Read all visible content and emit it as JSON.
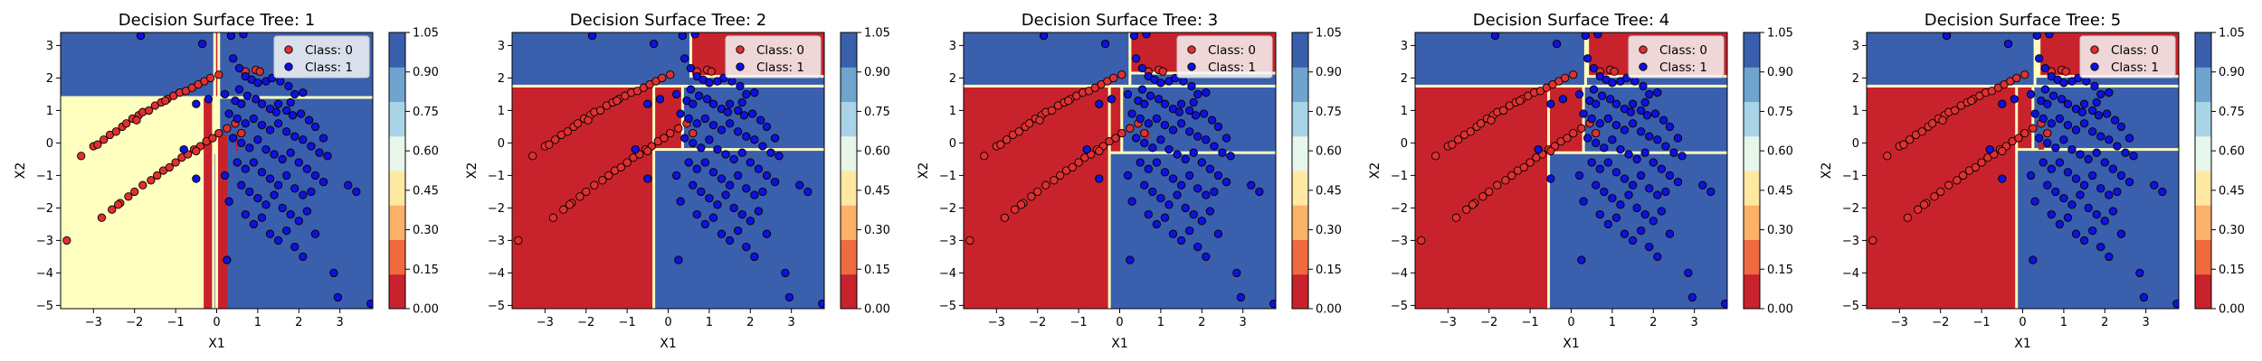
{
  "colors": {
    "class0": "#c8232c",
    "class1": "#3a5fad",
    "boundary": "#ffffbf",
    "colorbar": [
      "#c8232c",
      "#ef6a3f",
      "#fcb168",
      "#fee8a2",
      "#e7f6ea",
      "#a9d4e7",
      "#6ea4cd",
      "#3a5fad"
    ],
    "point0": "#e03030",
    "point1": "#1010e0"
  },
  "colorbar_ticks": [
    "0.00",
    "0.15",
    "0.30",
    "0.45",
    "0.60",
    "0.75",
    "0.90",
    "1.05"
  ],
  "legend": {
    "class0": "Class: 0",
    "class1": "Class: 1"
  },
  "chart_data": [
    {
      "type": "scatter",
      "title": "Decision Surface Tree: 1",
      "xlabel": "X1",
      "ylabel": "X2",
      "xlim": [
        -3.8,
        3.8
      ],
      "ylim": [
        -5.1,
        3.4
      ],
      "xticks": [
        "-3",
        "-2",
        "-1",
        "0",
        "1",
        "2",
        "3"
      ],
      "yticks": [
        "-5",
        "-4",
        "-3",
        "-2",
        "-1",
        "0",
        "1",
        "2",
        "3"
      ],
      "regions_class1": [
        [
          -3.8,
          1.4,
          -0.05,
          3.4
        ],
        [
          0.05,
          1.4,
          3.8,
          3.4
        ],
        [
          0.05,
          -5.1,
          3.8,
          1.4
        ],
        [
          -0.08,
          -5.1,
          0.0,
          -0.3
        ],
        [
          0.3,
          -5.1,
          0.42,
          0.3
        ]
      ],
      "regions_class0": [
        [
          -0.05,
          1.4,
          0.05,
          3.4
        ],
        [
          -0.35,
          -5.1,
          -0.08,
          1.4
        ],
        [
          0.0,
          -5.1,
          0.3,
          0.3
        ],
        [
          0.42,
          -0.3,
          0.55,
          0.35
        ]
      ],
      "legend_position": "top-right"
    },
    {
      "type": "scatter",
      "title": "Decision Surface Tree: 2",
      "xlabel": "X1",
      "ylabel": "X2",
      "xlim": [
        -3.8,
        3.8
      ],
      "ylim": [
        -5.1,
        3.4
      ],
      "xticks": [
        "-3",
        "-2",
        "-1",
        "0",
        "1",
        "2",
        "3"
      ],
      "yticks": [
        "-5",
        "-4",
        "-3",
        "-2",
        "-1",
        "0",
        "1",
        "2",
        "3"
      ],
      "regions_class1": [
        [
          -3.8,
          1.75,
          0.55,
          3.4
        ],
        [
          0.45,
          1.75,
          3.8,
          2.05
        ],
        [
          -0.35,
          -5.1,
          3.8,
          -0.2
        ],
        [
          0.35,
          -0.2,
          3.8,
          1.75
        ]
      ],
      "regions_class0": [
        [
          -3.8,
          -5.1,
          -0.35,
          1.75
        ],
        [
          -0.35,
          -0.2,
          0.35,
          1.75
        ],
        [
          0.55,
          2.05,
          3.8,
          3.4
        ]
      ],
      "legend_position": "top-right"
    },
    {
      "type": "scatter",
      "title": "Decision Surface Tree: 3",
      "xlabel": "X1",
      "ylabel": "X2",
      "xlim": [
        -3.8,
        3.8
      ],
      "ylim": [
        -5.1,
        3.4
      ],
      "xticks": [
        "-3",
        "-2",
        "-1",
        "0",
        "1",
        "2",
        "3"
      ],
      "yticks": [
        "-5",
        "-4",
        "-3",
        "-2",
        "-1",
        "0",
        "1",
        "2",
        "3"
      ],
      "regions_class1": [
        [
          -3.8,
          1.75,
          0.25,
          3.4
        ],
        [
          0.25,
          1.75,
          3.8,
          2.15
        ],
        [
          -0.25,
          -5.1,
          3.8,
          -0.3
        ],
        [
          0.05,
          -0.3,
          3.8,
          1.75
        ]
      ],
      "regions_class0": [
        [
          -3.8,
          -5.1,
          -0.25,
          1.75
        ],
        [
          -0.25,
          -0.3,
          0.05,
          1.75
        ],
        [
          0.25,
          2.15,
          3.8,
          3.4
        ],
        [
          0.55,
          0.1,
          0.75,
          0.4
        ]
      ],
      "legend_position": "top-right"
    },
    {
      "type": "scatter",
      "title": "Decision Surface Tree: 4",
      "xlabel": "X1",
      "ylabel": "X2",
      "xlim": [
        -3.8,
        3.8
      ],
      "ylim": [
        -5.1,
        3.4
      ],
      "xticks": [
        "-3",
        "-2",
        "-1",
        "0",
        "1",
        "2",
        "3"
      ],
      "yticks": [
        "-5",
        "-4",
        "-3",
        "-2",
        "-1",
        "0",
        "1",
        "2",
        "3"
      ],
      "regions_class1": [
        [
          -3.8,
          1.75,
          0.35,
          3.4
        ],
        [
          0.35,
          1.75,
          3.8,
          2.05
        ],
        [
          -0.55,
          -5.1,
          3.8,
          -0.3
        ],
        [
          0.3,
          -0.3,
          3.8,
          1.75
        ]
      ],
      "regions_class0": [
        [
          -3.8,
          -5.1,
          -0.55,
          1.75
        ],
        [
          -0.55,
          -0.3,
          0.3,
          1.75
        ],
        [
          0.4,
          2.05,
          3.8,
          3.4
        ]
      ],
      "legend_position": "top-right"
    },
    {
      "type": "scatter",
      "title": "Decision Surface Tree: 5",
      "xlabel": "X1",
      "ylabel": "X2",
      "xlim": [
        -3.8,
        3.8
      ],
      "ylim": [
        -5.1,
        3.4
      ],
      "xticks": [
        "-3",
        "-2",
        "-1",
        "0",
        "1",
        "2",
        "3"
      ],
      "yticks": [
        "-5",
        "-4",
        "-3",
        "-2",
        "-1",
        "0",
        "1",
        "2",
        "3"
      ],
      "regions_class1": [
        [
          -3.8,
          1.75,
          0.3,
          3.4
        ],
        [
          0.3,
          1.75,
          3.8,
          2.05
        ],
        [
          -0.15,
          -5.1,
          3.8,
          -0.2
        ],
        [
          0.25,
          -0.2,
          3.8,
          1.75
        ]
      ],
      "regions_class0": [
        [
          -3.8,
          -5.1,
          -0.15,
          1.75
        ],
        [
          -0.15,
          -0.2,
          0.25,
          1.75
        ],
        [
          0.4,
          2.05,
          3.8,
          3.4
        ],
        [
          0.35,
          -0.25,
          0.55,
          0.05
        ]
      ],
      "legend_position": "top-right"
    }
  ],
  "scatter_points": {
    "class0": [
      [
        -3.65,
        -3.0
      ],
      [
        -3.3,
        -0.4
      ],
      [
        -3.0,
        -0.1
      ],
      [
        -2.9,
        -0.05
      ],
      [
        -2.75,
        0.1
      ],
      [
        -2.6,
        0.25
      ],
      [
        -2.45,
        0.35
      ],
      [
        -2.3,
        0.5
      ],
      [
        -2.2,
        0.6
      ],
      [
        -2.05,
        0.75
      ],
      [
        -1.9,
        0.85
      ],
      [
        -1.8,
        0.95
      ],
      [
        -1.65,
        1.0
      ],
      [
        -1.5,
        1.15
      ],
      [
        -1.35,
        1.25
      ],
      [
        -1.2,
        1.35
      ],
      [
        -1.05,
        1.45
      ],
      [
        -0.9,
        1.55
      ],
      [
        -0.75,
        1.6
      ],
      [
        -0.6,
        1.7
      ],
      [
        -0.45,
        1.8
      ],
      [
        -0.3,
        1.9
      ],
      [
        -0.15,
        2.0
      ],
      [
        0.05,
        2.1
      ],
      [
        -2.8,
        -2.3
      ],
      [
        -2.55,
        -2.05
      ],
      [
        -2.35,
        -1.85
      ],
      [
        -2.15,
        -1.65
      ],
      [
        -2.0,
        -1.5
      ],
      [
        -1.8,
        -1.3
      ],
      [
        -1.6,
        -1.15
      ],
      [
        -1.45,
        -1.0
      ],
      [
        -1.3,
        -0.85
      ],
      [
        -1.15,
        -0.75
      ],
      [
        -1.0,
        -0.6
      ],
      [
        -0.85,
        -0.45
      ],
      [
        -0.7,
        -0.35
      ],
      [
        -0.55,
        -0.2
      ],
      [
        -0.4,
        -0.1
      ],
      [
        -0.25,
        0.05
      ],
      [
        -0.1,
        0.15
      ],
      [
        0.05,
        0.3
      ],
      [
        0.25,
        0.45
      ],
      [
        0.45,
        0.6
      ],
      [
        0.6,
        0.3
      ],
      [
        -1.95,
        0.7
      ],
      [
        -1.25,
        1.3
      ],
      [
        -0.5,
        -0.25
      ],
      [
        -2.4,
        -1.9
      ],
      [
        0.7,
        2.2
      ],
      [
        0.95,
        2.25
      ],
      [
        1.05,
        2.2
      ]
    ],
    "class1": [
      [
        -1.85,
        3.3
      ],
      [
        -0.35,
        3.05
      ],
      [
        0.35,
        3.3
      ],
      [
        0.65,
        3.35
      ],
      [
        -0.5,
        1.2
      ],
      [
        -0.2,
        1.35
      ],
      [
        0.2,
        1.5
      ],
      [
        0.4,
        2.6
      ],
      [
        0.55,
        2.3
      ],
      [
        0.7,
        2.05
      ],
      [
        0.85,
        1.95
      ],
      [
        1.0,
        1.85
      ],
      [
        1.2,
        1.9
      ],
      [
        1.35,
        2.0
      ],
      [
        1.55,
        1.9
      ],
      [
        1.75,
        1.75
      ],
      [
        1.9,
        1.5
      ],
      [
        2.1,
        1.55
      ],
      [
        0.45,
        1.3
      ],
      [
        0.6,
        1.2
      ],
      [
        0.75,
        1.45
      ],
      [
        0.95,
        1.35
      ],
      [
        1.1,
        1.2
      ],
      [
        1.3,
        1.05
      ],
      [
        1.5,
        1.2
      ],
      [
        1.7,
        1.0
      ],
      [
        1.85,
        0.85
      ],
      [
        2.05,
        0.9
      ],
      [
        2.25,
        0.7
      ],
      [
        2.4,
        0.5
      ],
      [
        0.3,
        0.9
      ],
      [
        0.5,
        0.75
      ],
      [
        0.7,
        0.6
      ],
      [
        0.9,
        0.75
      ],
      [
        1.1,
        0.55
      ],
      [
        1.3,
        0.4
      ],
      [
        1.5,
        0.6
      ],
      [
        1.7,
        0.35
      ],
      [
        1.9,
        0.2
      ],
      [
        2.1,
        0.1
      ],
      [
        2.3,
        -0.1
      ],
      [
        2.5,
        -0.3
      ],
      [
        0.4,
        0.15
      ],
      [
        0.6,
        0.0
      ],
      [
        0.8,
        -0.15
      ],
      [
        1.0,
        0.1
      ],
      [
        1.2,
        -0.2
      ],
      [
        1.4,
        -0.35
      ],
      [
        1.6,
        -0.5
      ],
      [
        1.8,
        -0.3
      ],
      [
        2.0,
        -0.6
      ],
      [
        2.2,
        -0.8
      ],
      [
        2.4,
        -1.0
      ],
      [
        2.6,
        -1.2
      ],
      [
        0.5,
        -0.6
      ],
      [
        0.7,
        -0.8
      ],
      [
        0.9,
        -0.6
      ],
      [
        1.1,
        -0.9
      ],
      [
        1.3,
        -1.1
      ],
      [
        1.5,
        -1.3
      ],
      [
        1.7,
        -1.0
      ],
      [
        1.9,
        -1.4
      ],
      [
        2.1,
        -1.6
      ],
      [
        2.3,
        -1.5
      ],
      [
        0.6,
        -1.3
      ],
      [
        0.8,
        -1.5
      ],
      [
        1.0,
        -1.7
      ],
      [
        1.2,
        -1.9
      ],
      [
        1.4,
        -1.6
      ],
      [
        1.6,
        -2.0
      ],
      [
        1.8,
        -2.2
      ],
      [
        2.0,
        -2.4
      ],
      [
        2.2,
        -2.1
      ],
      [
        0.7,
        -2.2
      ],
      [
        0.9,
        -2.5
      ],
      [
        1.1,
        -2.3
      ],
      [
        1.3,
        -2.8
      ],
      [
        1.5,
        -3.0
      ],
      [
        1.7,
        -2.7
      ],
      [
        1.9,
        -3.2
      ],
      [
        2.1,
        -3.5
      ],
      [
        2.4,
        -2.8
      ],
      [
        0.2,
        -1.0
      ],
      [
        0.3,
        -1.8
      ],
      [
        0.25,
        -3.6
      ],
      [
        -0.5,
        -1.1
      ],
      [
        -0.8,
        -0.2
      ],
      [
        2.85,
        -4.0
      ],
      [
        2.95,
        -4.75
      ],
      [
        3.2,
        -1.3
      ],
      [
        3.4,
        -1.5
      ],
      [
        2.7,
        -0.4
      ],
      [
        3.75,
        -4.95
      ],
      [
        1.45,
        0.95
      ],
      [
        0.55,
        1.65
      ],
      [
        1.8,
        1.25
      ],
      [
        2.6,
        0.15
      ]
    ]
  }
}
